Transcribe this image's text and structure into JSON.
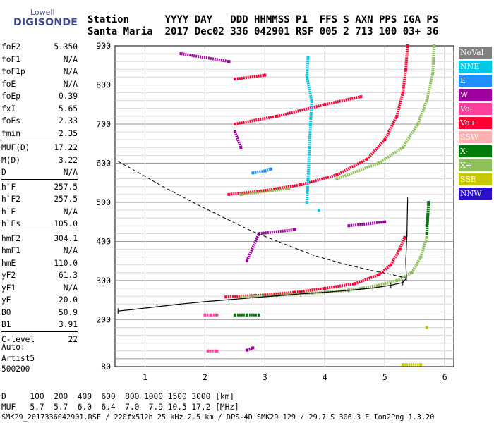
{
  "logo": {
    "line1": "Lowell",
    "line2": "DIGISONDE"
  },
  "header": {
    "line1": "Station      YYYY DAY   DDD HHMMSS P1  FFS S AXN PPS IGA PS",
    "line2": "Santa Maria  2017 Dec02 336 042901 RSF 005 2 713 100 03+ 36"
  },
  "params": [
    {
      "k": "foF2",
      "v": "5.350"
    },
    {
      "k": "foF1",
      "v": "N/A"
    },
    {
      "k": "foF1p",
      "v": "N/A"
    },
    {
      "k": "foE",
      "v": "N/A"
    },
    {
      "k": "foEp",
      "v": "0.39"
    },
    {
      "k": "fxI",
      "v": "5.65"
    },
    {
      "k": "foEs",
      "v": "2.33"
    },
    {
      "k": "fmin",
      "v": "2.35"
    },
    {
      "k": "MUF(D)",
      "v": "17.22"
    },
    {
      "k": "M(D)",
      "v": "3.22"
    },
    {
      "k": "D",
      "v": "N/A"
    },
    {
      "k": "h`F",
      "v": "257.5"
    },
    {
      "k": "h`F2",
      "v": "257.5"
    },
    {
      "k": "h`E",
      "v": "N/A"
    },
    {
      "k": "h`Es",
      "v": "105.0"
    },
    {
      "k": "hmF2",
      "v": "304.1"
    },
    {
      "k": "hmF1",
      "v": "N/A"
    },
    {
      "k": "hmE",
      "v": "110.0"
    },
    {
      "k": "yF2",
      "v": "61.3"
    },
    {
      "k": "yF1",
      "v": "N/A"
    },
    {
      "k": "yE",
      "v": "20.0"
    },
    {
      "k": "B0",
      "v": "50.9"
    },
    {
      "k": "B1",
      "v": "3.91"
    },
    {
      "k": "C-level",
      "v": "22"
    }
  ],
  "auto": {
    "l1": "Auto:",
    "l2": "Artist5",
    "l3": "500200"
  },
  "footer": {
    "d_row": "D     100  200  400  600  800 1000 1500 3000 [km]",
    "muf_row": "MUF   5.7  5.7  6.0  6.4  7.0  7.9 10.5 17.2 [MHz]",
    "file_row": "SMK29_2017336042901.RSF / 220fx512h 25 kHz 2.5 km / DPS-4D SMK29 129 / 29.7 S 306.3 E Ion2Png 1.3.20"
  },
  "legend": [
    {
      "label": "NoVal",
      "color": "#808080"
    },
    {
      "label": "NNE",
      "color": "#00c8e6"
    },
    {
      "label": "E",
      "color": "#1e90ff"
    },
    {
      "label": "W",
      "color": "#a0009e"
    },
    {
      "label": "Vo-",
      "color": "#ff3f9c"
    },
    {
      "label": "Vo+",
      "color": "#ff0033"
    },
    {
      "label": "SSW",
      "color": "#ffb0b0"
    },
    {
      "label": "X-",
      "color": "#007a0a"
    },
    {
      "label": "X+",
      "color": "#8ec05a"
    },
    {
      "label": "SSE",
      "color": "#c8c800"
    },
    {
      "label": "NNW",
      "color": "#2a10c8"
    }
  ],
  "chart_data": {
    "type": "scatter",
    "xlabel": "",
    "ylabel": "",
    "xlim": [
      0.5,
      6.15
    ],
    "ylim": [
      80,
      900
    ],
    "xticks": [
      "1",
      "2",
      "3",
      "4",
      "5",
      "6"
    ],
    "yticks": [
      "80",
      "200",
      "300",
      "400",
      "500",
      "600",
      "700",
      "800",
      "900"
    ],
    "grid": true,
    "series": [
      {
        "name": "Vo+",
        "color": "#ff0033",
        "points": [
          [
            2.35,
            258
          ],
          [
            3.0,
            263
          ],
          [
            3.5,
            270
          ],
          [
            4.0,
            280
          ],
          [
            4.5,
            292
          ],
          [
            4.9,
            315
          ],
          [
            5.1,
            340
          ],
          [
            5.25,
            380
          ],
          [
            5.33,
            410
          ],
          [
            2.4,
            520
          ],
          [
            3.0,
            530
          ],
          [
            3.6,
            545
          ],
          [
            4.2,
            570
          ],
          [
            4.7,
            610
          ],
          [
            5.0,
            660
          ],
          [
            5.2,
            720
          ],
          [
            5.3,
            780
          ],
          [
            5.35,
            840
          ],
          [
            5.38,
            900
          ],
          [
            2.5,
            700
          ],
          [
            3.2,
            720
          ],
          [
            4.0,
            750
          ],
          [
            4.6,
            770
          ],
          [
            2.5,
            815
          ],
          [
            3.0,
            825
          ]
        ]
      },
      {
        "name": "X+",
        "color": "#8ec05a",
        "points": [
          [
            2.6,
            258
          ],
          [
            3.2,
            262
          ],
          [
            3.8,
            268
          ],
          [
            4.4,
            275
          ],
          [
            4.9,
            288
          ],
          [
            5.2,
            300
          ],
          [
            5.45,
            320
          ],
          [
            5.6,
            360
          ],
          [
            5.7,
            410
          ],
          [
            5.72,
            470
          ],
          [
            2.6,
            520
          ],
          [
            3.4,
            535
          ],
          [
            4.2,
            560
          ],
          [
            4.9,
            600
          ],
          [
            5.3,
            640
          ],
          [
            5.55,
            700
          ],
          [
            5.7,
            760
          ],
          [
            5.8,
            830
          ],
          [
            5.82,
            900
          ]
        ]
      },
      {
        "name": "X-",
        "color": "#007a0a",
        "points": [
          [
            2.5,
            212
          ],
          [
            2.7,
            212
          ],
          [
            2.9,
            212
          ],
          [
            5.7,
            440
          ],
          [
            5.72,
            470
          ],
          [
            5.73,
            500
          ],
          [
            5.7,
            420
          ]
        ]
      },
      {
        "name": "NNE",
        "color": "#00c8e6",
        "points": [
          [
            3.7,
            500
          ],
          [
            3.72,
            560
          ],
          [
            3.74,
            640
          ],
          [
            3.76,
            700
          ],
          [
            3.78,
            760
          ],
          [
            3.7,
            820
          ],
          [
            3.72,
            870
          ],
          [
            3.9,
            480
          ]
        ]
      },
      {
        "name": "W",
        "color": "#a0009e",
        "points": [
          [
            1.6,
            880
          ],
          [
            2.4,
            860
          ],
          [
            2.5,
            680
          ],
          [
            2.6,
            640
          ],
          [
            2.7,
            350
          ],
          [
            2.9,
            420
          ],
          [
            3.5,
            430
          ],
          [
            4.4,
            440
          ],
          [
            5.0,
            450
          ],
          [
            2.7,
            122
          ],
          [
            2.8,
            128
          ]
        ]
      },
      {
        "name": "Vo-",
        "color": "#ff3f9c",
        "points": [
          [
            2.0,
            212
          ],
          [
            2.1,
            212
          ],
          [
            2.2,
            212
          ],
          [
            2.05,
            120
          ],
          [
            2.2,
            120
          ]
        ]
      },
      {
        "name": "E",
        "color": "#1e90ff",
        "points": [
          [
            2.8,
            575
          ],
          [
            3.0,
            580
          ],
          [
            3.1,
            585
          ]
        ]
      },
      {
        "name": "SSE",
        "color": "#c8c800",
        "points": [
          [
            5.7,
            180
          ],
          [
            5.6,
            85
          ],
          [
            5.3,
            85
          ]
        ]
      },
      {
        "name": "profile-trace",
        "color": "#000000",
        "points": [
          [
            0.55,
            222
          ],
          [
            0.8,
            226
          ],
          [
            1.2,
            233
          ],
          [
            1.6,
            240
          ],
          [
            2.0,
            246
          ],
          [
            2.4,
            251
          ],
          [
            2.8,
            256
          ],
          [
            3.2,
            261
          ],
          [
            3.6,
            266
          ],
          [
            4.0,
            270
          ],
          [
            4.4,
            275
          ],
          [
            4.8,
            281
          ],
          [
            5.1,
            288
          ],
          [
            5.3,
            295
          ],
          [
            5.36,
            306
          ],
          [
            5.35,
            350
          ],
          [
            5.37,
            420
          ],
          [
            5.38,
            505
          ]
        ]
      },
      {
        "name": "e-density-profile",
        "color": "#000000",
        "points": [
          [
            0.55,
            605
          ],
          [
            0.9,
            575
          ],
          [
            1.3,
            540
          ],
          [
            1.8,
            500
          ],
          [
            2.3,
            462
          ],
          [
            2.8,
            425
          ],
          [
            3.3,
            395
          ],
          [
            3.8,
            365
          ],
          [
            4.3,
            343
          ],
          [
            4.8,
            325
          ],
          [
            5.1,
            316
          ],
          [
            5.36,
            306
          ]
        ]
      }
    ]
  }
}
